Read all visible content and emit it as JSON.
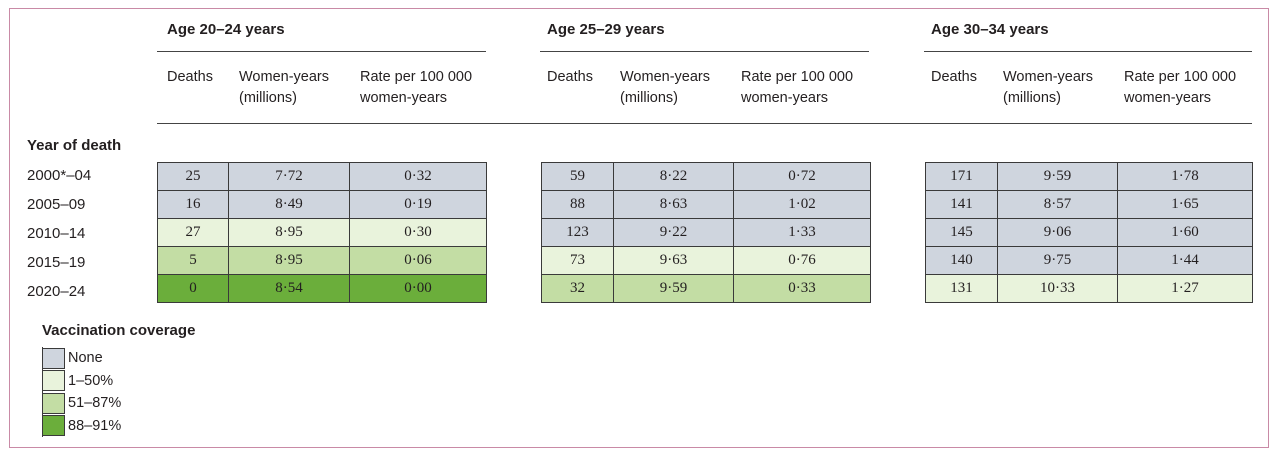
{
  "colors": {
    "None": "#cfd5de",
    "1-50": "#e9f3dc",
    "51-87": "#c3dda4",
    "88-91": "#6bae3b"
  },
  "row_header": "Year of death",
  "years": [
    "2000*–04",
    "2005–09",
    "2010–14",
    "2015–19",
    "2020–24"
  ],
  "column_headers": {
    "deaths": "Deaths",
    "women_years_1": "Women-years",
    "women_years_2": "(millions)",
    "rate_1": "Rate per 100 000",
    "rate_2": "women-years"
  },
  "groups": [
    {
      "title": "Age 20–24 years",
      "rows": [
        {
          "deaths": "25",
          "women_years": "7·72",
          "rate": "0·32",
          "coverage": "None"
        },
        {
          "deaths": "16",
          "women_years": "8·49",
          "rate": "0·19",
          "coverage": "None"
        },
        {
          "deaths": "27",
          "women_years": "8·95",
          "rate": "0·30",
          "coverage": "1-50"
        },
        {
          "deaths": "5",
          "women_years": "8·95",
          "rate": "0·06",
          "coverage": "51-87"
        },
        {
          "deaths": "0",
          "women_years": "8·54",
          "rate": "0·00",
          "coverage": "88-91"
        }
      ]
    },
    {
      "title": "Age 25–29 years",
      "rows": [
        {
          "deaths": "59",
          "women_years": "8·22",
          "rate": "0·72",
          "coverage": "None"
        },
        {
          "deaths": "88",
          "women_years": "8·63",
          "rate": "1·02",
          "coverage": "None"
        },
        {
          "deaths": "123",
          "women_years": "9·22",
          "rate": "1·33",
          "coverage": "None"
        },
        {
          "deaths": "73",
          "women_years": "9·63",
          "rate": "0·76",
          "coverage": "1-50"
        },
        {
          "deaths": "32",
          "women_years": "9·59",
          "rate": "0·33",
          "coverage": "51-87"
        }
      ]
    },
    {
      "title": "Age 30–34 years",
      "rows": [
        {
          "deaths": "171",
          "women_years": "9·59",
          "rate": "1·78",
          "coverage": "None"
        },
        {
          "deaths": "141",
          "women_years": "8·57",
          "rate": "1·65",
          "coverage": "None"
        },
        {
          "deaths": "145",
          "women_years": "9·06",
          "rate": "1·60",
          "coverage": "None"
        },
        {
          "deaths": "140",
          "women_years": "9·75",
          "rate": "1·44",
          "coverage": "None"
        },
        {
          "deaths": "131",
          "women_years": "10·33",
          "rate": "1·27",
          "coverage": "1-50"
        }
      ]
    }
  ],
  "legend": {
    "title": "Vaccination coverage",
    "items": [
      {
        "key": "None",
        "label": "None"
      },
      {
        "key": "1-50",
        "label": "1–50%"
      },
      {
        "key": "51-87",
        "label": "51–87%"
      },
      {
        "key": "88-91",
        "label": "88–91%"
      }
    ]
  }
}
